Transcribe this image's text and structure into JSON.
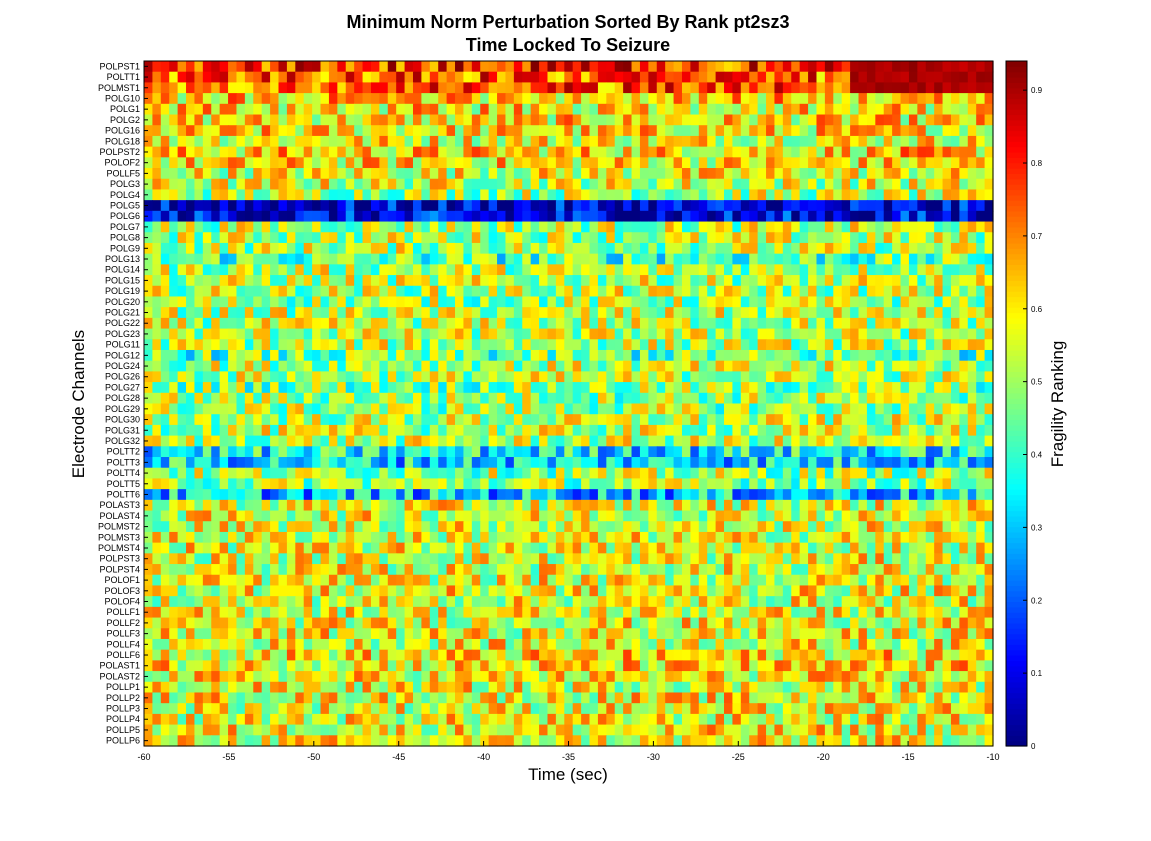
{
  "chart_data": {
    "type": "heatmap",
    "title": [
      "Minimum Norm Perturbation Sorted By Rank pt2sz3",
      "Time Locked To Seizure"
    ],
    "xlabel": "Time (sec)",
    "ylabel": "Electrode Channels",
    "colorbar_label": "Fragility Ranking",
    "colormap": "jet",
    "xlim": [
      -60,
      -10
    ],
    "x_ticks": [
      -60,
      -55,
      -50,
      -45,
      -40,
      -35,
      -30,
      -25,
      -20,
      -15,
      -10
    ],
    "colorbar_range": [
      0,
      0.94
    ],
    "colorbar_ticks": [
      0,
      0.1,
      0.2,
      0.3,
      0.4,
      0.5,
      0.6,
      0.7,
      0.8,
      0.9
    ],
    "num_time_windows": 101,
    "channels": [
      "POLPST1",
      "POLTT1",
      "POLMST1",
      "POLG10",
      "POLG1",
      "POLG2",
      "POLG16",
      "POLG18",
      "POLPST2",
      "POLOF2",
      "POLLF5",
      "POLG3",
      "POLG4",
      "POLG5",
      "POLG6",
      "POLG7",
      "POLG8",
      "POLG9",
      "POLG13",
      "POLG14",
      "POLG15",
      "POLG19",
      "POLG20",
      "POLG21",
      "POLG22",
      "POLG23",
      "POLG11",
      "POLG12",
      "POLG24",
      "POLG26",
      "POLG27",
      "POLG28",
      "POLG29",
      "POLG30",
      "POLG31",
      "POLG32",
      "POLTT2",
      "POLTT3",
      "POLTT4",
      "POLTT5",
      "POLTT6",
      "POLAST3",
      "POLAST4",
      "POLMST2",
      "POLMST3",
      "POLMST4",
      "POLPST3",
      "POLPST4",
      "POLOF1",
      "POLOF3",
      "POLOF4",
      "POLLF1",
      "POLLF2",
      "POLLF3",
      "POLLF4",
      "POLLF6",
      "POLAST1",
      "POLAST2",
      "POLLP1",
      "POLLP2",
      "POLLP3",
      "POLLP4",
      "POLLP5",
      "POLLP6"
    ],
    "channel_mean_ranking": [
      0.78,
      0.74,
      0.74,
      0.62,
      0.6,
      0.6,
      0.6,
      0.59,
      0.62,
      0.6,
      0.57,
      0.55,
      0.52,
      0.07,
      0.09,
      0.52,
      0.52,
      0.52,
      0.43,
      0.52,
      0.52,
      0.52,
      0.5,
      0.52,
      0.52,
      0.52,
      0.52,
      0.44,
      0.52,
      0.52,
      0.48,
      0.5,
      0.5,
      0.52,
      0.52,
      0.52,
      0.35,
      0.33,
      0.5,
      0.5,
      0.3,
      0.56,
      0.56,
      0.56,
      0.56,
      0.56,
      0.56,
      0.56,
      0.56,
      0.57,
      0.56,
      0.57,
      0.57,
      0.57,
      0.57,
      0.6,
      0.6,
      0.58,
      0.57,
      0.58,
      0.57,
      0.57,
      0.58,
      0.57
    ],
    "late_window_emphasis": {
      "from_time": -18,
      "channels": [
        "POLPST1",
        "POLTT1",
        "POLMST1"
      ],
      "ranking": 0.9
    }
  }
}
